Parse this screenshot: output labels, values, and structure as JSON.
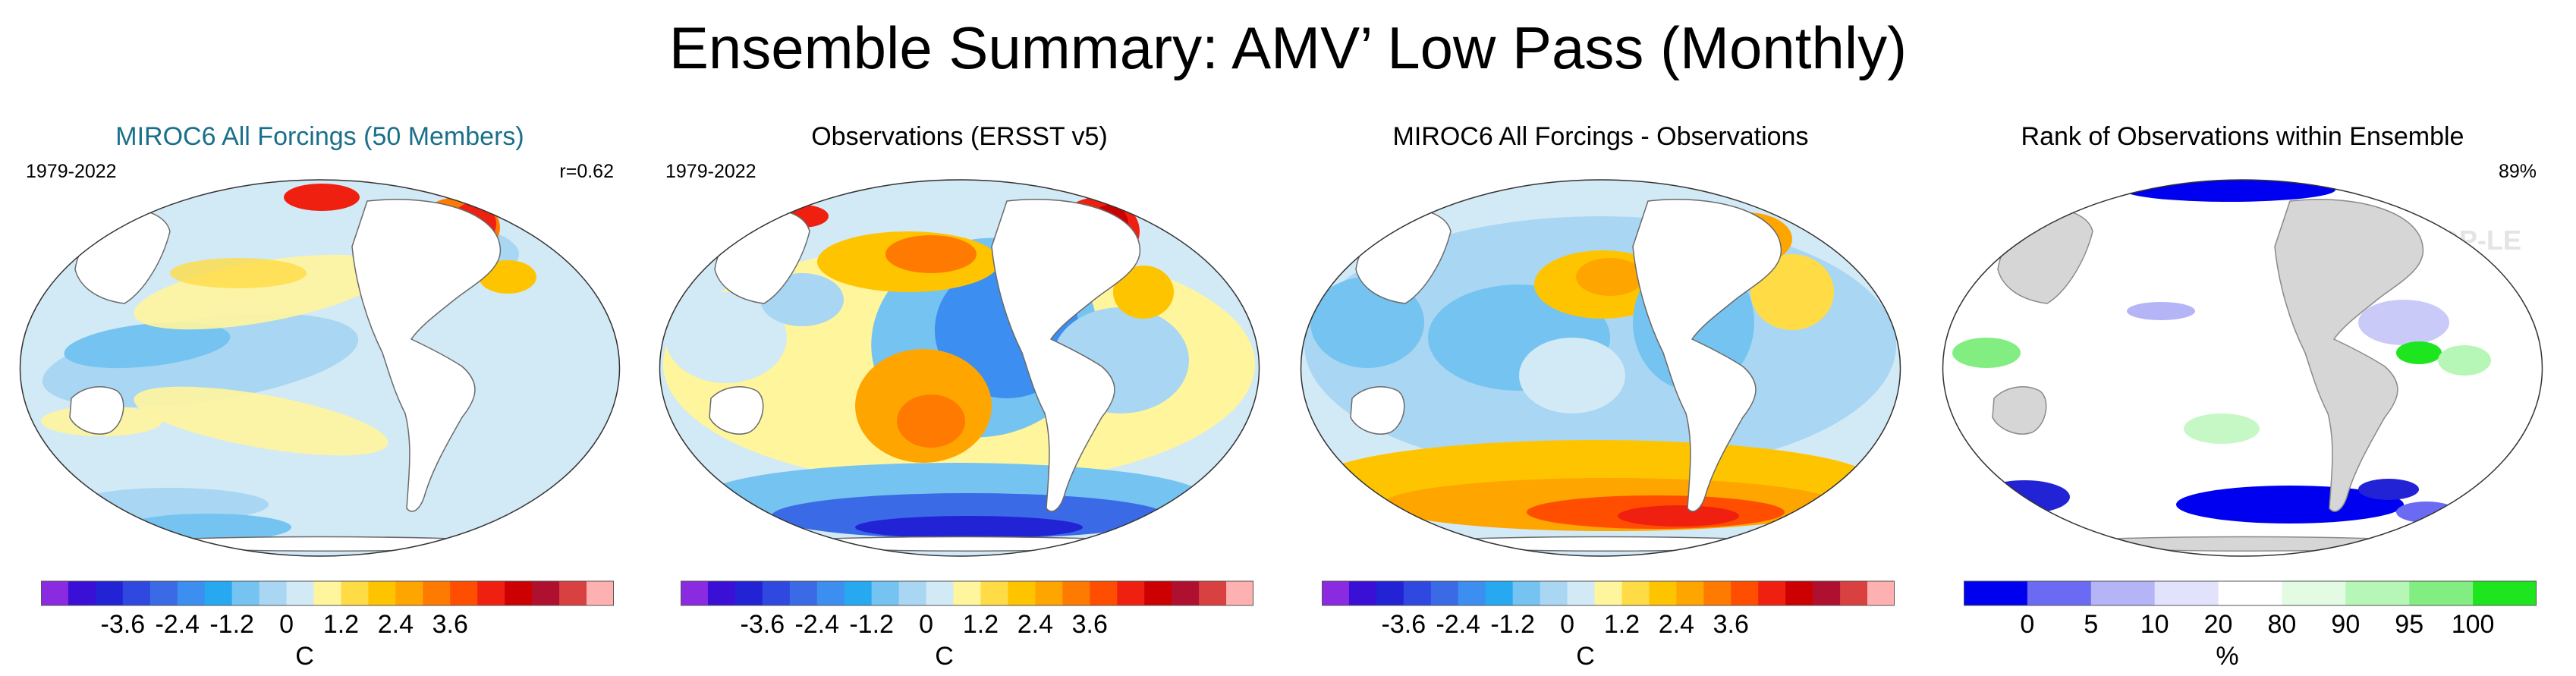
{
  "figure": {
    "title": "Ensemble Summary: AMV’ Low Pass (Monthly)",
    "watermark": "© CVDP-LE"
  },
  "panels": [
    {
      "title": "MIROC6 All Forcings (50 Members)",
      "title_color": "#1a6f8a",
      "period": "1979-2022",
      "stat": "r=0.62",
      "map_kind": "ens",
      "colorbar": {
        "colors": [
          "#8a2be2",
          "#3a0fd6",
          "#2323d6",
          "#2f48e0",
          "#3b6ae6",
          "#3c8ef0",
          "#27a9f2",
          "#75c3f0",
          "#a9d6f2",
          "#d2e9f6",
          "#fff59d",
          "#ffdc46",
          "#ffc400",
          "#ffa500",
          "#ff7a00",
          "#ff4e00",
          "#f02010",
          "#cc0000",
          "#b01030",
          "#d94040",
          "#ffb0b0"
        ],
        "tick_labels": [
          "-3.6",
          "-2.4",
          "-1.2",
          "0",
          "1.2",
          "2.4",
          "3.6"
        ],
        "units": "C"
      }
    },
    {
      "title": "Observations (ERSST v5)",
      "title_color": "#000000",
      "period": "1979-2022",
      "stat": "",
      "map_kind": "obs",
      "colorbar": {
        "colors": [
          "#8a2be2",
          "#3a0fd6",
          "#2323d6",
          "#2f48e0",
          "#3b6ae6",
          "#3c8ef0",
          "#27a9f2",
          "#75c3f0",
          "#a9d6f2",
          "#d2e9f6",
          "#fff59d",
          "#ffdc46",
          "#ffc400",
          "#ffa500",
          "#ff7a00",
          "#ff4e00",
          "#f02010",
          "#cc0000",
          "#b01030",
          "#d94040",
          "#ffb0b0"
        ],
        "tick_labels": [
          "-3.6",
          "-2.4",
          "-1.2",
          "0",
          "1.2",
          "2.4",
          "3.6"
        ],
        "units": "C"
      }
    },
    {
      "title": "MIROC6 All Forcings - Observations",
      "title_color": "#000000",
      "period": "",
      "stat": "",
      "map_kind": "diff",
      "colorbar": {
        "colors": [
          "#8a2be2",
          "#3a0fd6",
          "#2323d6",
          "#2f48e0",
          "#3b6ae6",
          "#3c8ef0",
          "#27a9f2",
          "#75c3f0",
          "#a9d6f2",
          "#d2e9f6",
          "#fff59d",
          "#ffdc46",
          "#ffc400",
          "#ffa500",
          "#ff7a00",
          "#ff4e00",
          "#f02010",
          "#cc0000",
          "#b01030",
          "#d94040",
          "#ffb0b0"
        ],
        "tick_labels": [
          "-3.6",
          "-2.4",
          "-1.2",
          "0",
          "1.2",
          "2.4",
          "3.6"
        ],
        "units": "C"
      }
    },
    {
      "title": "Rank of Observations within Ensemble",
      "title_color": "#000000",
      "period": "",
      "stat": "89%",
      "map_kind": "rank",
      "colorbar": {
        "colors": [
          "#0000f0",
          "#6a6af2",
          "#b4b4f6",
          "#e2e2fc",
          "#ffffff",
          "#e2fbe2",
          "#b6f6b6",
          "#82ee82",
          "#1ee61e"
        ],
        "tick_labels": [
          "0",
          "5",
          "10",
          "20",
          "80",
          "90",
          "95",
          "100"
        ],
        "units": "%"
      }
    }
  ]
}
